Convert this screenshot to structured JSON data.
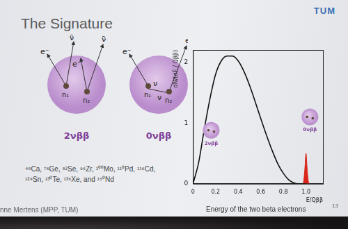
{
  "slide": {
    "title": "The Signature",
    "logo": "TUM",
    "diagrams": [
      {
        "label": "2νββ",
        "particles": [
          "e⁻",
          "ν̄",
          "e⁻",
          "ν̄"
        ],
        "nucleons": [
          "n₁",
          "n₂"
        ]
      },
      {
        "label": "0νββ",
        "particles": [
          "e⁻",
          "ν",
          "ν",
          "e⁻"
        ],
        "nucleons": [
          "n₁",
          "n₂"
        ]
      }
    ],
    "isotopes": "⁴⁸Ca, ⁷⁶Ge, ⁸²Se, ⁹⁶Zr, ¹⁰⁰Mo, ¹¹⁰Pd, ¹¹⁶Cd, ¹²⁴Sn, ¹³⁰Te, ¹³⁶Xe, and ¹⁵⁰Nd",
    "footer": "nne Mertens (MPP, TUM)",
    "page_number": "13"
  },
  "chart_data": {
    "type": "line",
    "x_label": "E/Qββ",
    "y_label": "dN/(dE / Qββ)",
    "caption": "Energy of the two beta electrons",
    "xlim": [
      0,
      1.15
    ],
    "xticks": [
      0,
      0.2,
      0.4,
      0.6,
      0.8,
      1
    ],
    "ylim": [
      0,
      2.2
    ],
    "yticks": [
      0,
      1,
      2
    ],
    "grid": false,
    "series": [
      {
        "name": "2νββ",
        "color": "#111111",
        "x": [
          0,
          0.05,
          0.1,
          0.15,
          0.2,
          0.25,
          0.3,
          0.35,
          0.4,
          0.45,
          0.5,
          0.55,
          0.6,
          0.65,
          0.7,
          0.75,
          0.8,
          0.85,
          0.9,
          0.95,
          1.0
        ],
        "values": [
          0,
          0.35,
          0.9,
          1.4,
          1.8,
          2.02,
          2.1,
          2.1,
          2.02,
          1.85,
          1.62,
          1.35,
          1.07,
          0.8,
          0.55,
          0.33,
          0.17,
          0.06,
          0.01,
          0,
          0
        ]
      },
      {
        "name": "0νββ",
        "color": "#d9261c",
        "x": [
          0.97,
          0.98,
          0.99,
          1.0,
          1.01,
          1.02,
          1.03
        ],
        "values": [
          0,
          0.05,
          0.25,
          0.5,
          0.25,
          0.05,
          0
        ]
      }
    ]
  }
}
